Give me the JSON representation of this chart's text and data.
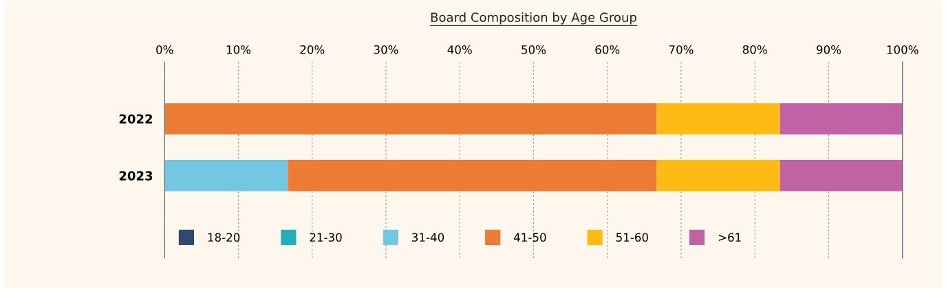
{
  "chart_data": {
    "type": "bar",
    "orientation": "horizontal",
    "stacked": true,
    "title": "Board Composition by Age Group",
    "categories": [
      "2022",
      "2023"
    ],
    "series": [
      {
        "name": "18-20",
        "color": "#2e4a6e",
        "values": [
          0,
          0
        ]
      },
      {
        "name": "21-30",
        "color": "#22b0b8",
        "values": [
          0,
          0
        ]
      },
      {
        "name": "31-40",
        "color": "#74c7e3",
        "values": [
          0,
          16.7
        ]
      },
      {
        "name": "41-50",
        "color": "#ec7c33",
        "values": [
          66.7,
          50
        ]
      },
      {
        "name": "51-60",
        "color": "#fdbb13",
        "values": [
          16.7,
          16.7
        ]
      },
      {
        "name": ">61",
        "color": "#c062a4",
        "values": [
          16.6,
          16.6
        ]
      }
    ],
    "xlim": [
      0,
      100
    ],
    "xticks": [
      {
        "value": 0,
        "label": "0%"
      },
      {
        "value": 10,
        "label": "10%"
      },
      {
        "value": 20,
        "label": "20%"
      },
      {
        "value": 30,
        "label": "30%"
      },
      {
        "value": 40,
        "label": "40%"
      },
      {
        "value": 50,
        "label": "50%"
      },
      {
        "value": 60,
        "label": "60%"
      },
      {
        "value": 70,
        "label": "70%"
      },
      {
        "value": 80,
        "label": "80%"
      },
      {
        "value": 90,
        "label": "90%"
      },
      {
        "value": 100,
        "label": "100%"
      }
    ],
    "grid": "x",
    "legend": "bottom left"
  }
}
